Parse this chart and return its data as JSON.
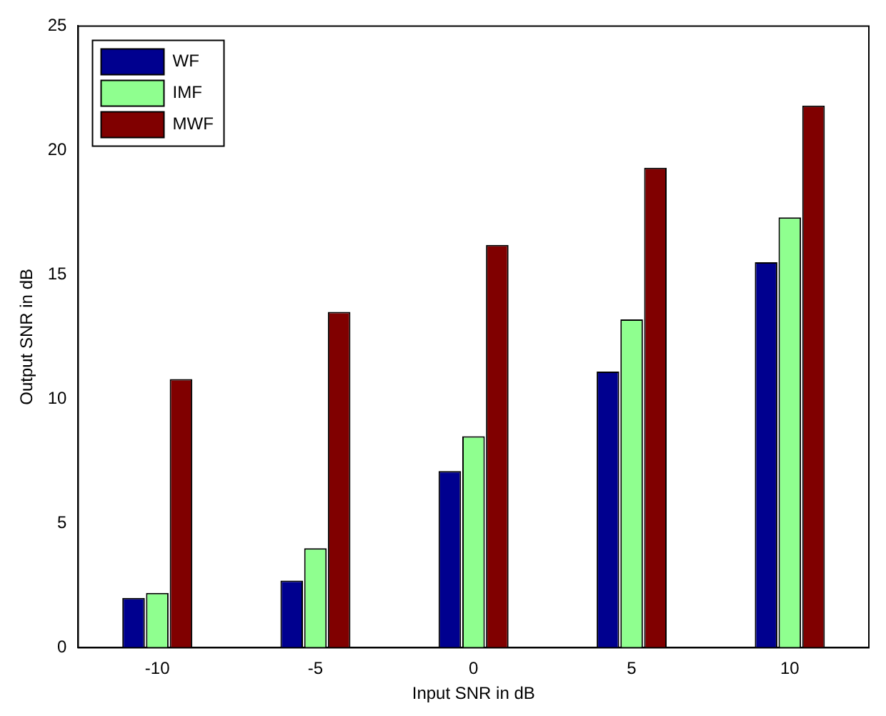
{
  "chart_data": {
    "type": "bar",
    "xlabel": "Input SNR in dB",
    "ylabel": "Output SNR in dB",
    "categories": [
      "-10",
      "-5",
      "0",
      "5",
      "10"
    ],
    "series": [
      {
        "name": "WF",
        "color": "#00008f",
        "values": [
          2.0,
          2.7,
          7.1,
          11.1,
          15.5
        ]
      },
      {
        "name": "IMF",
        "color": "#8fff8f",
        "values": [
          2.2,
          4.0,
          8.5,
          13.2,
          17.3
        ]
      },
      {
        "name": "MWF",
        "color": "#800000",
        "values": [
          10.8,
          13.5,
          16.2,
          19.3,
          21.8
        ]
      }
    ],
    "ylim": [
      0,
      25
    ],
    "yticks": [
      0,
      5,
      10,
      15,
      20,
      25
    ],
    "grid": false,
    "legend": "top left"
  }
}
